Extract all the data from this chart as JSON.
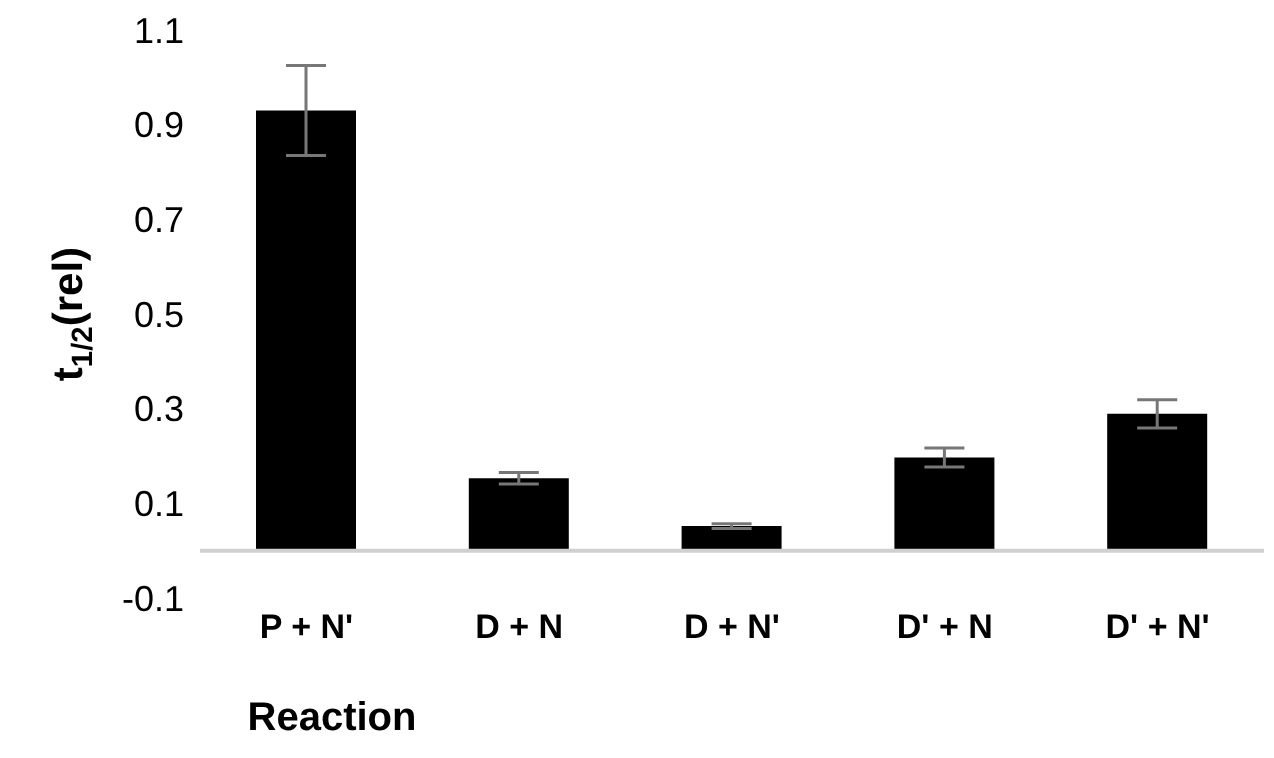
{
  "chart_data": {
    "type": "bar",
    "xlabel": "Reaction",
    "ylabel": "t$_{1/2}$(rel)",
    "categories": [
      "P + N'",
      "D + N",
      "D + N'",
      "D' + N",
      "D' + N'"
    ],
    "values": [
      0.93,
      0.153,
      0.052,
      0.197,
      0.289
    ],
    "errors": [
      0.095,
      0.012,
      0.005,
      0.02,
      0.03
    ],
    "color": "#000000",
    "ylim": [
      -0.1,
      1.1
    ],
    "yticks": [
      -0.1,
      0.1,
      0.3,
      0.5,
      0.7,
      0.9,
      1.1
    ],
    "grid": false,
    "legend": false
  }
}
